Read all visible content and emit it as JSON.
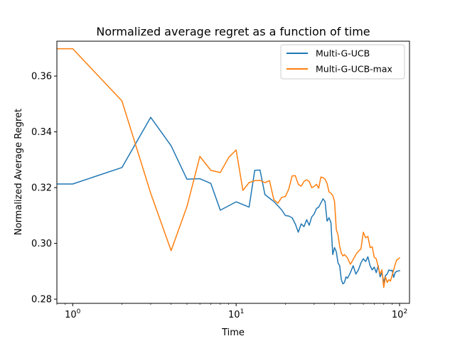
{
  "chart_data": {
    "type": "line",
    "title": "Normalized average regret as a function of time",
    "xlabel": "Time",
    "ylabel": "Normalized Average Regret",
    "xscale": "log",
    "xlim": [
      0.8,
      115
    ],
    "ylim": [
      0.2785,
      0.3725
    ],
    "x_major_ticks": [
      1,
      10,
      100
    ],
    "x_major_tick_labels": [
      "10",
      "10",
      "10"
    ],
    "x_major_tick_exponents": [
      "0",
      "1",
      "2"
    ],
    "y_ticks": [
      0.28,
      0.3,
      0.32,
      0.34,
      0.36
    ],
    "y_tick_labels": [
      "0.28",
      "0.30",
      "0.32",
      "0.34",
      "0.36"
    ],
    "legend_position": "top-right",
    "series": [
      {
        "name": "Multi-G-UCB",
        "color": "#1f77b4",
        "x": [
          0.8,
          1,
          2,
          3,
          4,
          5,
          6,
          7,
          8,
          10,
          12,
          13,
          14,
          15,
          17,
          18,
          19,
          20,
          21,
          22,
          23,
          24,
          25,
          26,
          27,
          28,
          29,
          30,
          31,
          32,
          33,
          34,
          35,
          36,
          37,
          38,
          39,
          40,
          41,
          42,
          43,
          44,
          45,
          46,
          47,
          48,
          50,
          52,
          54,
          56,
          58,
          60,
          62,
          64,
          66,
          68,
          70,
          72,
          74,
          76,
          78,
          80,
          82,
          84,
          86,
          88,
          90,
          92,
          94,
          96,
          100
        ],
        "y": [
          0.3213,
          0.3213,
          0.3272,
          0.3452,
          0.335,
          0.323,
          0.3232,
          0.3215,
          0.3119,
          0.3149,
          0.313,
          0.3262,
          0.3263,
          0.3175,
          0.315,
          0.3135,
          0.312,
          0.31,
          0.3098,
          0.3092,
          0.307,
          0.304,
          0.307,
          0.306,
          0.3085,
          0.3065,
          0.3095,
          0.3105,
          0.3125,
          0.313,
          0.3145,
          0.316,
          0.315,
          0.308,
          0.3092,
          0.3075,
          0.296,
          0.2985,
          0.297,
          0.293,
          0.292,
          0.287,
          0.2855,
          0.286,
          0.288,
          0.2875,
          0.2895,
          0.292,
          0.289,
          0.2905,
          0.293,
          0.2945,
          0.2935,
          0.2952,
          0.292,
          0.2905,
          0.2915,
          0.2895,
          0.292,
          0.288,
          0.2895,
          0.286,
          0.2885,
          0.289,
          0.2905,
          0.2902,
          0.2904,
          0.2878,
          0.2895,
          0.29,
          0.2902
        ]
      },
      {
        "name": "Multi-G-UCB-max",
        "color": "#ff7f0e",
        "x": [
          0.8,
          1,
          2,
          3,
          4,
          5,
          6,
          7,
          8,
          9,
          10,
          11,
          12,
          13,
          14,
          15,
          16,
          17,
          18,
          19,
          20,
          21,
          22,
          23,
          24,
          25,
          26,
          27,
          28,
          29,
          30,
          31,
          32,
          33,
          34,
          35,
          36,
          37,
          38,
          39,
          40,
          41,
          42,
          43,
          44,
          45,
          46,
          48,
          50,
          52,
          54,
          56,
          58,
          60,
          62,
          64,
          66,
          68,
          70,
          72,
          74,
          76,
          78,
          80,
          82,
          84,
          86,
          88,
          90,
          92,
          94,
          96,
          100
        ],
        "y": [
          0.3698,
          0.3698,
          0.3511,
          0.318,
          0.2974,
          0.3132,
          0.3312,
          0.3262,
          0.3254,
          0.3308,
          0.3335,
          0.319,
          0.3218,
          0.3225,
          0.3226,
          0.3218,
          0.3225,
          0.3157,
          0.3144,
          0.3165,
          0.3168,
          0.3195,
          0.3242,
          0.3243,
          0.3212,
          0.3205,
          0.3222,
          0.3228,
          0.3222,
          0.32,
          0.3204,
          0.3212,
          0.3198,
          0.3238,
          0.3236,
          0.323,
          0.3215,
          0.3185,
          0.318,
          0.3172,
          0.315,
          0.305,
          0.303,
          0.299,
          0.2965,
          0.2955,
          0.296,
          0.2948,
          0.2925,
          0.2942,
          0.296,
          0.2972,
          0.298,
          0.304,
          0.302,
          0.3025,
          0.2985,
          0.2988,
          0.295,
          0.2945,
          0.2915,
          0.289,
          0.2905,
          0.2842,
          0.288,
          0.286,
          0.287,
          0.2865,
          0.2885,
          0.2905,
          0.2925,
          0.294,
          0.2948
        ]
      }
    ]
  }
}
